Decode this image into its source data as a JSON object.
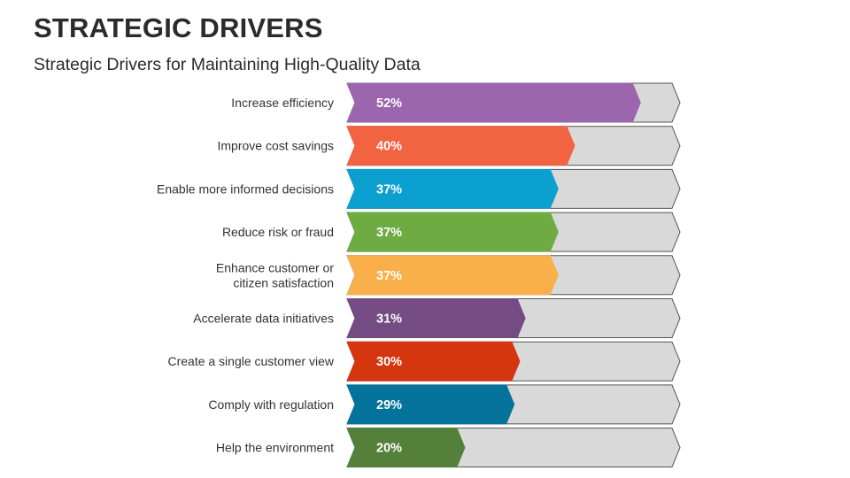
{
  "header": {
    "title": "STRATEGIC DRIVERS",
    "subtitle": "Strategic Drivers for Maintaining High-Quality Data"
  },
  "chart_data": {
    "type": "bar",
    "orientation": "horizontal",
    "title": "Strategic Drivers for Maintaining High-Quality Data",
    "xlabel": "",
    "ylabel": "",
    "xlim": [
      0,
      100
    ],
    "categories": [
      "Increase efficiency",
      "Improve cost savings",
      "Enable more informed decisions",
      "Reduce risk or fraud",
      "Enhance customer or citizen satisfaction",
      "Accelerate data initiatives",
      "Create a single customer view",
      "Comply with regulation",
      "Help the environment"
    ],
    "label_lines": [
      [
        "Increase efficiency"
      ],
      [
        "Improve cost savings"
      ],
      [
        "Enable more informed decisions"
      ],
      [
        "Reduce risk or fraud"
      ],
      [
        "Enhance customer or",
        "citizen satisfaction"
      ],
      [
        "Accelerate data initiatives"
      ],
      [
        "Create a single customer view"
      ],
      [
        "Comply with regulation"
      ],
      [
        "Help the environment"
      ]
    ],
    "values": [
      52,
      40,
      37,
      37,
      37,
      31,
      30,
      29,
      20
    ],
    "value_labels": [
      "52%",
      "40%",
      "37%",
      "37%",
      "37%",
      "31%",
      "30%",
      "29%",
      "20%"
    ],
    "colors": [
      "#9b66ae",
      "#f26341",
      "#0ba0d0",
      "#6eab42",
      "#f9b04b",
      "#744c83",
      "#d5360f",
      "#03739b",
      "#54803a"
    ],
    "track_color": "#d9d9d9",
    "track_stroke": "#555555"
  }
}
